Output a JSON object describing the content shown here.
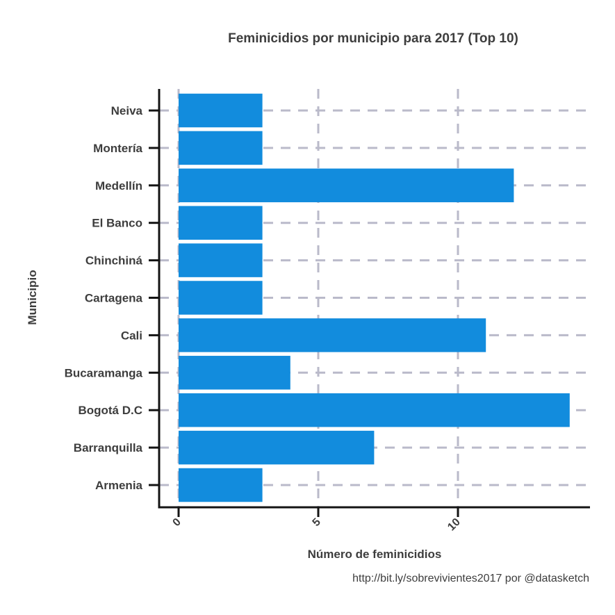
{
  "chart_data": {
    "type": "bar",
    "orientation": "horizontal",
    "title": "Feminicidios por municipio para 2017 (Top 10)",
    "xlabel": "Número de feminicidios",
    "ylabel": "Municipio",
    "caption": "http://bit.ly/sobrevivientes2017 por @datasketch",
    "categories": [
      "Armenia",
      "Barranquilla",
      "Bogotá D.C",
      "Bucaramanga",
      "Cali",
      "Cartagena",
      "Chinchiná",
      "El Banco",
      "Medellín",
      "Montería",
      "Neiva"
    ],
    "values": [
      3,
      7,
      14,
      4,
      11,
      3,
      3,
      3,
      12,
      3,
      3
    ],
    "xticks": [
      "0",
      "5",
      "10"
    ],
    "xtick_values": [
      0,
      5,
      10
    ],
    "xlim": [
      -0.7,
      14.7
    ],
    "grid": true,
    "bar_color": "#128cdd",
    "grid_color": "#babaca",
    "legend": "none"
  }
}
